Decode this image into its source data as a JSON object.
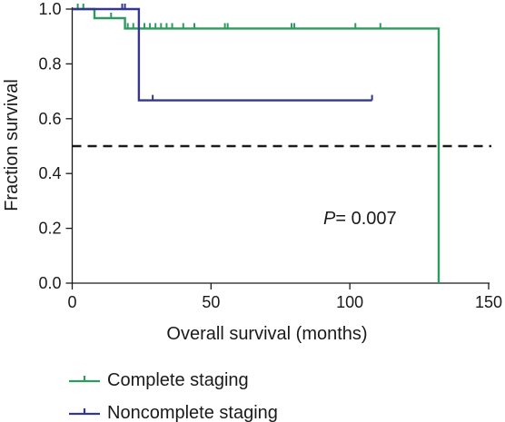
{
  "chart_data": {
    "type": "line",
    "title": "",
    "xlabel": "Overall survival (months)",
    "ylabel": "Fraction survival",
    "xlim": [
      0,
      150
    ],
    "ylim": [
      0,
      1.0
    ],
    "xticks": [
      0,
      50,
      100,
      150
    ],
    "yticks": [
      0.0,
      0.2,
      0.4,
      0.6,
      0.8,
      1.0
    ],
    "xtick_labels": [
      "0",
      "50",
      "100",
      "150"
    ],
    "ytick_labels": [
      "0.0",
      "0.2",
      "0.4",
      "0.6",
      "0.8",
      "1.0"
    ],
    "grid": false,
    "legend_position": "bottom-left",
    "reference_line": {
      "y": 0.5,
      "style": "dashed",
      "color": "#1a1a1a"
    },
    "annotation": {
      "italic": "P",
      "text": "= 0.007"
    },
    "series": [
      {
        "name": "Complete staging",
        "color": "#2e9a5e",
        "steps": [
          [
            0,
            1.0
          ],
          [
            8,
            1.0
          ],
          [
            8,
            0.967
          ],
          [
            19,
            0.967
          ],
          [
            19,
            0.929
          ],
          [
            132,
            0.929
          ],
          [
            132,
            0.0
          ]
        ],
        "censored": [
          [
            2,
            1.0
          ],
          [
            4,
            1.0
          ],
          [
            14,
            0.967
          ],
          [
            20,
            0.929
          ],
          [
            22,
            0.929
          ],
          [
            24,
            0.929
          ],
          [
            26,
            0.929
          ],
          [
            28,
            0.929
          ],
          [
            30,
            0.929
          ],
          [
            32,
            0.929
          ],
          [
            34,
            0.929
          ],
          [
            36,
            0.929
          ],
          [
            40,
            0.929
          ],
          [
            44,
            0.929
          ],
          [
            55,
            0.929
          ],
          [
            56,
            0.929
          ],
          [
            79,
            0.929
          ],
          [
            80,
            0.929
          ],
          [
            102,
            0.929
          ],
          [
            111,
            0.929
          ]
        ]
      },
      {
        "name": "Noncomplete staging",
        "color": "#35378f",
        "steps": [
          [
            0,
            1.0
          ],
          [
            24,
            1.0
          ],
          [
            24,
            0.667
          ],
          [
            108,
            0.667
          ]
        ],
        "censored": [
          [
            18,
            1.0
          ],
          [
            19,
            1.0
          ],
          [
            29,
            0.667
          ],
          [
            108,
            0.667
          ]
        ]
      }
    ]
  }
}
